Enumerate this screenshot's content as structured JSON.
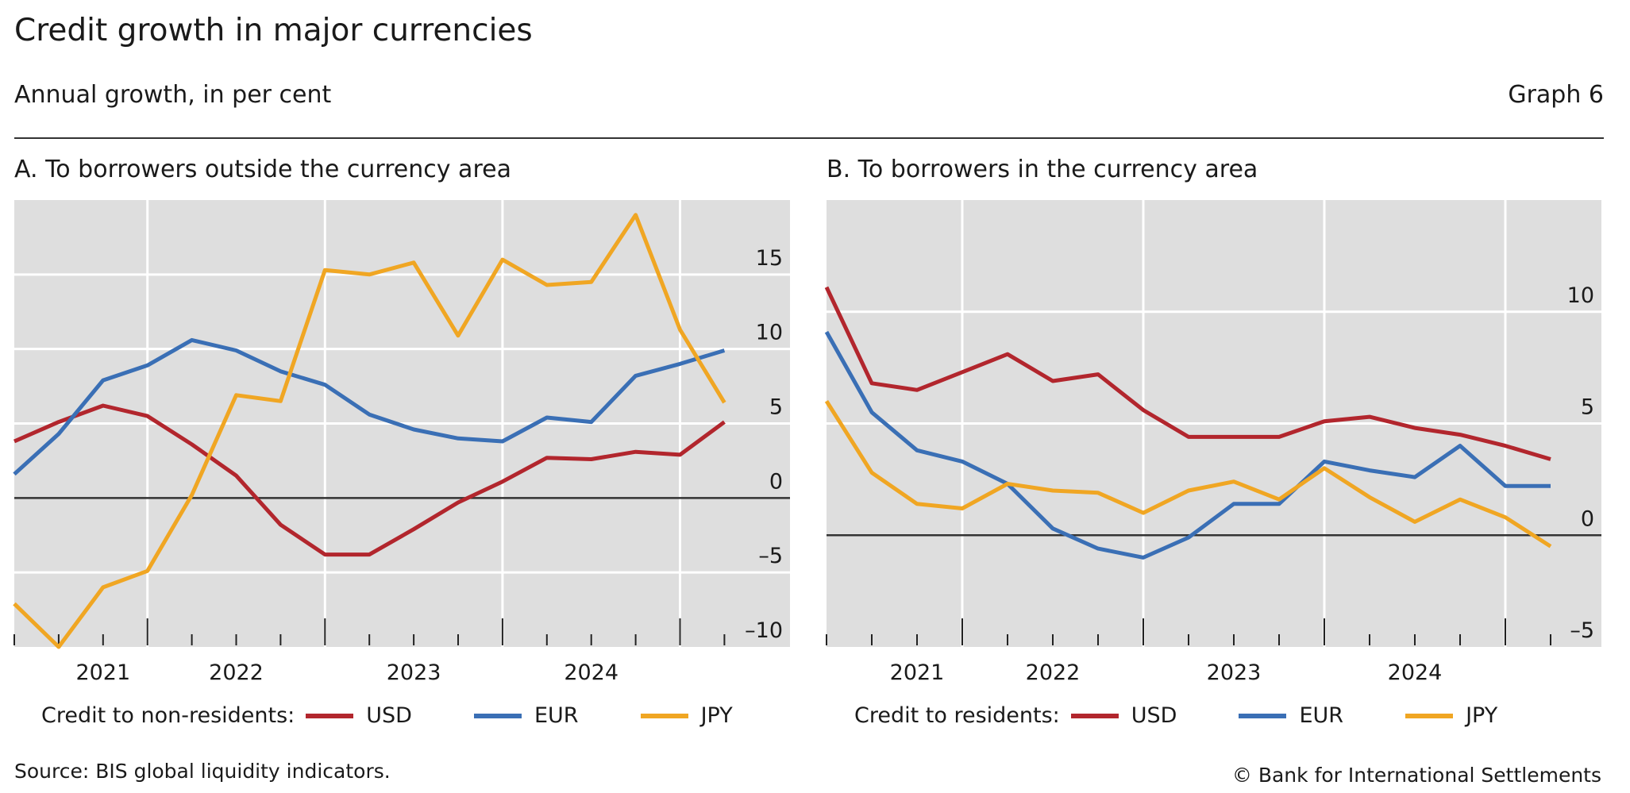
{
  "header": {
    "title": "Credit growth in major currencies",
    "subtitle": "Annual growth, in per cent",
    "graph_number": "Graph 6"
  },
  "colors": {
    "USD": "#b2262d",
    "EUR": "#3a6fb5",
    "JPY": "#f0a623",
    "plot_bg": "#dedede",
    "grid": "#ffffff",
    "zero_line": "#333333"
  },
  "legends": {
    "a": {
      "label": "Credit to non-residents:",
      "items": [
        "USD",
        "EUR",
        "JPY"
      ]
    },
    "b": {
      "label": "Credit to residents:",
      "items": [
        "USD",
        "EUR",
        "JPY"
      ]
    }
  },
  "footer": {
    "source": "Source: BIS global liquidity indicators.",
    "copyright": "© Bank for International Settlements"
  },
  "chart_data": [
    {
      "type": "line",
      "title": "A. To borrowers outside the currency area",
      "xlabel": "",
      "ylabel": "",
      "x_tick_labels": [
        "2021",
        "2022",
        "2023",
        "2024"
      ],
      "x": [
        "2020-Q4",
        "2021-Q1",
        "2021-Q2",
        "2021-Q3",
        "2021-Q4",
        "2022-Q1",
        "2022-Q2",
        "2022-Q3",
        "2022-Q4",
        "2023-Q1",
        "2023-Q2",
        "2023-Q3",
        "2023-Q4",
        "2024-Q1",
        "2024-Q2",
        "2024-Q3",
        "2024-Q4"
      ],
      "ylim": [
        -10,
        20
      ],
      "y_ticks": [
        -10,
        -5,
        0,
        5,
        10,
        15
      ],
      "y_tick_labels": [
        "–10",
        "–5",
        "0",
        "5",
        "10",
        "15"
      ],
      "y_axis_side": "right",
      "grid": true,
      "legend": "bottom",
      "series": [
        {
          "name": "USD",
          "values": [
            3.8,
            5.1,
            6.2,
            5.5,
            3.6,
            1.5,
            -1.8,
            -3.8,
            -3.8,
            -2.1,
            -0.3,
            1.1,
            2.7,
            2.6,
            3.1,
            2.9,
            5.1
          ]
        },
        {
          "name": "EUR",
          "values": [
            1.6,
            4.3,
            7.9,
            8.9,
            10.6,
            9.9,
            8.5,
            7.6,
            5.6,
            4.6,
            4.0,
            3.8,
            5.4,
            5.1,
            8.2,
            9.0,
            9.9
          ]
        },
        {
          "name": "JPY",
          "values": [
            -7.1,
            -10.0,
            -6.0,
            -4.9,
            0.2,
            6.9,
            6.5,
            15.3,
            15.0,
            15.8,
            10.9,
            16.0,
            14.3,
            14.5,
            19.0,
            11.3,
            6.4
          ]
        }
      ]
    },
    {
      "type": "line",
      "title": "B. To borrowers in the currency area",
      "xlabel": "",
      "ylabel": "",
      "x_tick_labels": [
        "2021",
        "2022",
        "2023",
        "2024"
      ],
      "x": [
        "2020-Q4",
        "2021-Q1",
        "2021-Q2",
        "2021-Q3",
        "2021-Q4",
        "2022-Q1",
        "2022-Q2",
        "2022-Q3",
        "2022-Q4",
        "2023-Q1",
        "2023-Q2",
        "2023-Q3",
        "2023-Q4",
        "2024-Q1",
        "2024-Q2",
        "2024-Q3",
        "2024-Q4"
      ],
      "ylim": [
        -5,
        15
      ],
      "y_ticks": [
        -5,
        0,
        5,
        10
      ],
      "y_tick_labels": [
        "–5",
        "0",
        "5",
        "10"
      ],
      "y_axis_side": "right",
      "grid": true,
      "legend": "bottom",
      "series": [
        {
          "name": "USD",
          "values": [
            11.1,
            6.8,
            6.5,
            7.3,
            8.1,
            6.9,
            7.2,
            5.6,
            4.4,
            4.4,
            4.4,
            5.1,
            5.3,
            4.8,
            4.5,
            4.0,
            3.4
          ]
        },
        {
          "name": "EUR",
          "values": [
            9.1,
            5.5,
            3.8,
            3.3,
            2.3,
            0.3,
            -0.6,
            -1.0,
            -0.1,
            1.4,
            1.4,
            3.3,
            2.9,
            2.6,
            4.0,
            2.2,
            2.2
          ]
        },
        {
          "name": "JPY",
          "values": [
            6.0,
            2.8,
            1.4,
            1.2,
            2.3,
            2.0,
            1.9,
            1.0,
            2.0,
            2.4,
            1.6,
            3.0,
            1.7,
            0.6,
            1.6,
            0.8,
            -0.5
          ]
        }
      ]
    }
  ]
}
